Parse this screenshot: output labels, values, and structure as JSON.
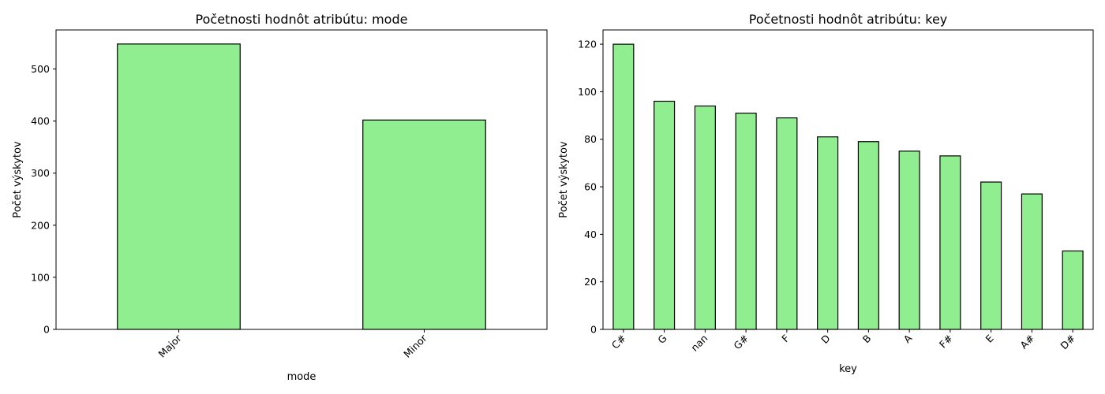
{
  "chart_data": [
    {
      "type": "bar",
      "title": "Početnosti hodnôt atribútu: mode",
      "xlabel": "mode",
      "ylabel": "Počet výskytov",
      "categories": [
        "Major",
        "Minor"
      ],
      "values": [
        548,
        402
      ],
      "ylim": [
        0,
        575
      ],
      "yticks": [
        0,
        100,
        200,
        300,
        400,
        500
      ],
      "bar_color": "#90ee90",
      "edge_color": "#000000",
      "xtick_rotation": 45,
      "grid": false
    },
    {
      "type": "bar",
      "title": "Početnosti hodnôt atribútu: key",
      "xlabel": "key",
      "ylabel": "Počet výskytov",
      "categories": [
        "C#",
        "G",
        "nan",
        "G#",
        "F",
        "D",
        "B",
        "A",
        "F#",
        "E",
        "A#",
        "D#"
      ],
      "values": [
        120,
        96,
        94,
        91,
        89,
        81,
        79,
        75,
        73,
        62,
        57,
        33
      ],
      "ylim": [
        0,
        126
      ],
      "yticks": [
        0,
        20,
        40,
        60,
        80,
        100,
        120
      ],
      "bar_color": "#90ee90",
      "edge_color": "#000000",
      "xtick_rotation": 45,
      "grid": false
    }
  ]
}
